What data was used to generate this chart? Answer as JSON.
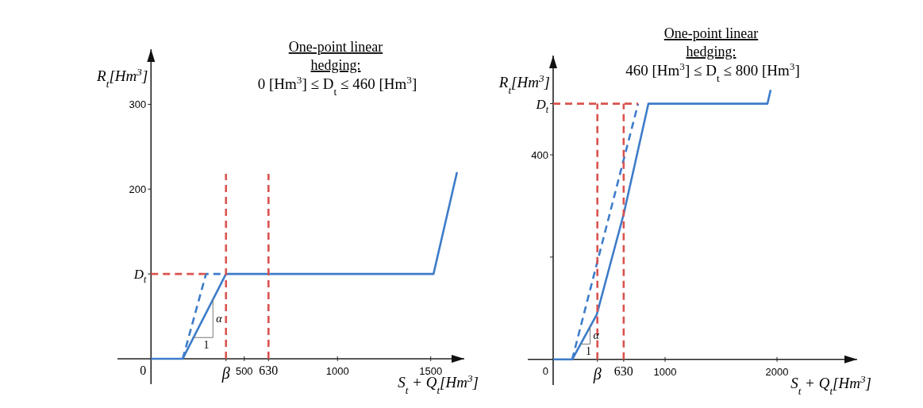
{
  "chart_data": [
    {
      "type": "line",
      "title": "One-point linear hedging:",
      "subtitle": "0 [Hm$^{3}$] ≤ D$_{t}$ ≤ 460 [Hm$^{3}$]",
      "xlabel": "S$_{t}$ + Q$_{t}$[Hm$^{3}$]",
      "ylabel": "R$_{t}$[Hm$^{3}$]",
      "xlim": [
        -180,
        1680
      ],
      "ylim": [
        -30,
        365
      ],
      "xticks": [
        {
          "value": 0,
          "label": "0"
        },
        {
          "value": 402,
          "label": "β"
        },
        500,
        {
          "value": 630,
          "label": "630"
        },
        1000,
        1500
      ],
      "yticks": [
        {
          "value": 100,
          "label": "D$_{t}$"
        },
        200,
        300
      ],
      "grid": false,
      "marker": "none",
      "series": [
        {
          "color": "#3d7cc9",
          "line_style": "solid",
          "x": [
            0,
            170,
            402,
            1515,
            1641
          ],
          "values": [
            0,
            0,
            100,
            100,
            220
          ]
        },
        {
          "color": "#3d7cc9",
          "line_style": "dashed",
          "x": [
            170,
            295,
            402
          ],
          "values": [
            0,
            100,
            100
          ]
        },
        {
          "color": "#d9534f",
          "line_style": "dashed",
          "x": [
            0,
            295
          ],
          "values": [
            100,
            100
          ]
        },
        {
          "color": "#d9534f",
          "line_style": "dashed",
          "x": [
            402,
            402
          ],
          "values": [
            0,
            218
          ]
        },
        {
          "color": "#d9534f",
          "line_style": "dashed",
          "x": [
            630,
            630
          ],
          "values": [
            0,
            218
          ]
        }
      ],
      "annotations": [
        {
          "text": "1",
          "x": 228,
          "y": 25
        },
        {
          "text": "α",
          "x": 332,
          "y": 70
        }
      ]
    },
    {
      "type": "line",
      "title": "One-point linear hedging:",
      "subtitle": "460 [Hm$^{3}$] ≤ D$_{t}$ ≤ 800 [Hm$^{3}$]",
      "xlabel": "S$_{t}$ + Q$_{t}$[Hm$^{3}$]",
      "ylabel": "R$_{t}$[Hm$^{3}$]",
      "xlim": [
        -227,
        2716
      ],
      "ylim": [
        -50,
        594
      ],
      "xticks": [
        {
          "value": 395,
          "label": "β"
        },
        {
          "value": 630,
          "label": "630"
        },
        1000,
        2000
      ],
      "yticks": [
        0,
        {
          "value": 200,
          "label": null
        },
        400,
        {
          "value": 500,
          "label": "D$_{t}$"
        }
      ],
      "grid": false,
      "marker": "none",
      "series": [
        {
          "color": "#3d7cc9",
          "line_style": "solid",
          "x": [
            0,
            170,
            390,
            630,
            851,
            1915,
            1943
          ],
          "values": [
            0,
            0,
            88,
            284,
            500,
            500,
            527
          ]
        },
        {
          "color": "#3d7cc9",
          "line_style": "dashed",
          "x": [
            170,
            759
          ],
          "values": [
            0,
            500
          ]
        },
        {
          "color": "#d9534f",
          "line_style": "dashed",
          "x": [
            0,
            759
          ],
          "values": [
            500,
            500
          ]
        },
        {
          "color": "#d9534f",
          "line_style": "dashed",
          "x": [
            395,
            395
          ],
          "values": [
            0,
            500
          ]
        },
        {
          "color": "#d9534f",
          "line_style": "dashed",
          "x": [
            630,
            630
          ],
          "values": [
            0,
            500
          ]
        }
      ],
      "annotations": [
        {
          "text": "1",
          "x": 245,
          "y": 30
        },
        {
          "text": "α",
          "x": 330,
          "y": 64
        }
      ]
    }
  ]
}
